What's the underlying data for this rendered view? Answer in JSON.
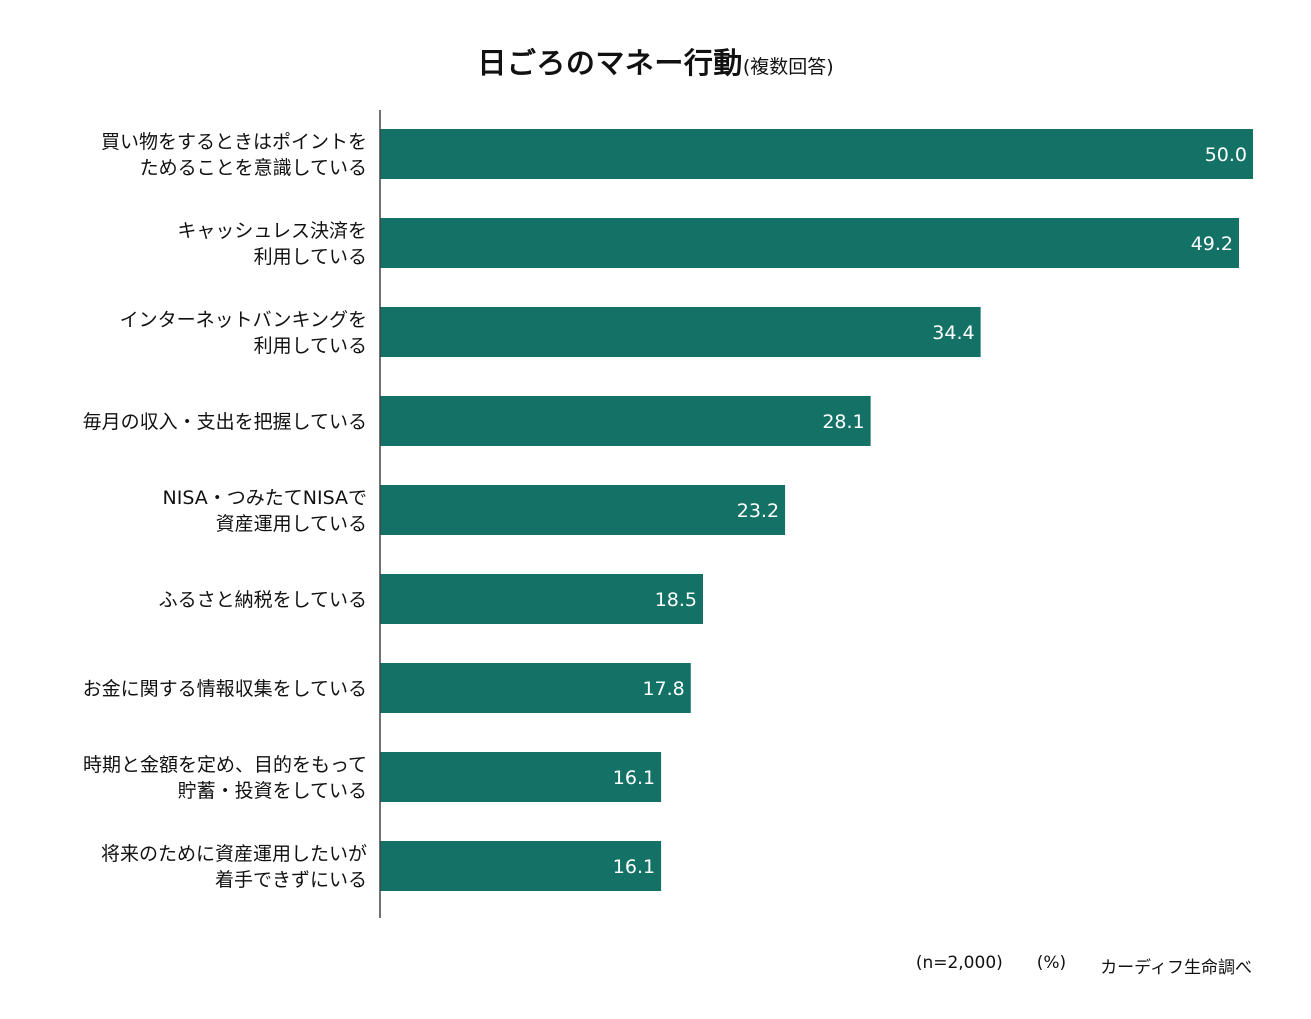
{
  "header": {
    "title": "日ごろのマネー行動",
    "subtitle": "(複数回答)"
  },
  "footer": {
    "sample": "(n=2,000)",
    "unit": "(%)",
    "source": "カーディフ生命調べ"
  },
  "colors": {
    "bar": "#137265",
    "axis": "#444444",
    "value_text": "#ffffff"
  },
  "chart_data": {
    "type": "bar",
    "orientation": "horizontal",
    "title": "日ごろのマネー行動",
    "subtitle": "(複数回答)",
    "categories": [
      [
        "買い物をするときはポイントを",
        "ためることを意識している"
      ],
      [
        "キャッシュレス決済を",
        "利用している"
      ],
      [
        "インターネットバンキングを",
        "利用している"
      ],
      [
        "毎月の収入・支出を把握している"
      ],
      [
        "NISA・つみたてNISAで",
        "資産運用している"
      ],
      [
        "ふるさと納税をしている"
      ],
      [
        "お金に関する情報収集をしている"
      ],
      [
        "時期と金額を定め、目的をもって",
        "貯蓄・投資をしている"
      ],
      [
        "将来のために資産運用したいが",
        "着手できずにいる"
      ]
    ],
    "values": [
      50.0,
      49.2,
      34.4,
      28.1,
      23.2,
      18.5,
      17.8,
      16.1,
      16.1
    ],
    "value_labels": [
      "50.0",
      "49.2",
      "34.4",
      "28.1",
      "23.2",
      "18.5",
      "17.8",
      "16.1",
      "16.1"
    ],
    "xlim": [
      0,
      50
    ],
    "unit": "(%)",
    "grid": false,
    "legend": "none"
  }
}
